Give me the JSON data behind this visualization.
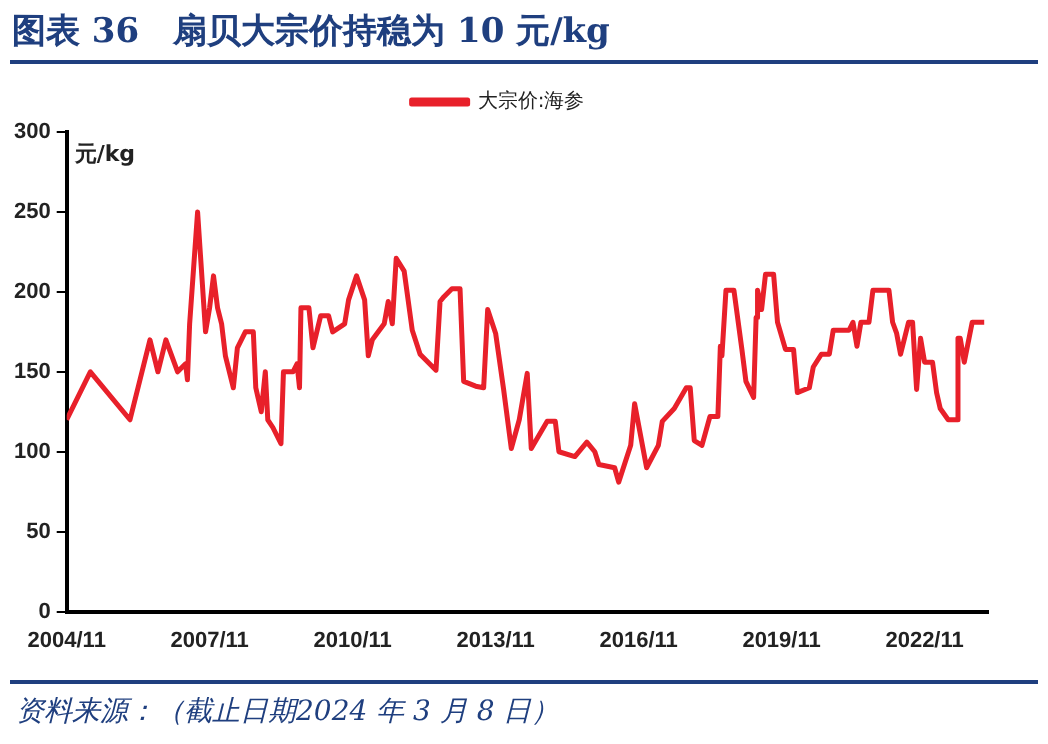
{
  "chart_data": {
    "type": "line",
    "title": "图表 36　扇贝大宗价持稳为 10 元/kg",
    "ylabel": "元/kg",
    "annotations": [
      "资料来源：（截止日期2024 年 3 月 8 日）"
    ],
    "legend": "top",
    "grid": false,
    "marker": "none",
    "xlim": [
      "2004-11",
      "2024-03"
    ],
    "xticks": [
      {
        "value": "2004-11",
        "label": "2004/11"
      },
      {
        "value": "2007-11",
        "label": "2007/11"
      },
      {
        "value": "2010-11",
        "label": "2010/11"
      },
      {
        "value": "2013-11",
        "label": "2013/11"
      },
      {
        "value": "2016-11",
        "label": "2016/11"
      },
      {
        "value": "2019-11",
        "label": "2019/11"
      },
      {
        "value": "2022-11",
        "label": "2022/11"
      }
    ],
    "ylim": [
      0,
      300
    ],
    "yticks": [
      0,
      50,
      100,
      150,
      200,
      250,
      300
    ],
    "x": [
      "2004-11",
      "2005-05",
      "2006-03",
      "2006-08",
      "2006-10",
      "2006-12",
      "2007-03",
      "2007-05",
      "2007-05-15",
      "2007-06",
      "2007-08",
      "2007-10",
      "2007-11",
      "2007-12",
      "2008-01",
      "2008-02",
      "2008-03",
      "2008-05",
      "2008-06",
      "2008-08",
      "2008-10",
      "2008-10-20",
      "2008-12",
      "2009-01",
      "2009-01-20",
      "2009-03",
      "2009-05",
      "2009-05-20",
      "2009-08",
      "2009-09",
      "2009-09-20",
      "2009-10",
      "2009-12",
      "2010-01",
      "2010-03",
      "2010-05",
      "2010-06",
      "2010-09",
      "2010-10",
      "2010-12",
      "2011-02",
      "2011-03",
      "2011-04",
      "2011-07",
      "2011-08",
      "2011-09",
      "2011-10",
      "2011-12",
      "2012-02",
      "2012-04",
      "2012-08",
      "2012-09",
      "2012-10",
      "2012-12",
      "2013-02",
      "2013-03",
      "2013-06",
      "2013-08",
      "2013-09",
      "2013-11",
      "2014-01",
      "2014-03",
      "2014-05",
      "2014-07",
      "2014-08",
      "2014-12",
      "2015-02",
      "2015-03",
      "2015-07",
      "2015-10",
      "2015-12",
      "2016-01",
      "2016-05",
      "2016-06",
      "2016-09",
      "2016-10",
      "2017-01",
      "2017-04",
      "2017-05",
      "2017-08",
      "2017-11",
      "2017-12",
      "2018-01",
      "2018-03",
      "2018-05",
      "2018-07",
      "2018-07-20",
      "2018-08",
      "2018-09",
      "2018-11",
      "2019-01",
      "2019-02",
      "2019-04",
      "2019-04-20",
      "2019-05",
      "2019-06",
      "2019-07",
      "2019-09",
      "2019-10",
      "2019-12",
      "2020-02",
      "2020-03",
      "2020-06",
      "2020-07",
      "2020-09",
      "2020-11",
      "2020-12",
      "2021-04",
      "2021-05",
      "2021-06",
      "2021-07",
      "2021-09",
      "2021-10",
      "2022-02",
      "2022-03",
      "2022-04",
      "2022-05",
      "2022-07",
      "2022-08",
      "2022-09",
      "2022-10",
      "2022-11",
      "2023-01",
      "2023-02",
      "2023-03",
      "2023-05",
      "2023-07",
      "2023-07-15",
      "2023-08",
      "2023-09",
      "2023-11",
      "2024-02"
    ],
    "series": [
      {
        "name": "大宗价:海参",
        "color": "#e8202a",
        "values": [
          120,
          150,
          120,
          170,
          150,
          170,
          150,
          155,
          145,
          180,
          250,
          175,
          190,
          210,
          190,
          180,
          160,
          140,
          165,
          175,
          175,
          140,
          125,
          150,
          120,
          115,
          105,
          150,
          150,
          155,
          140,
          190,
          190,
          165,
          185,
          185,
          175,
          180,
          195,
          210,
          195,
          160,
          170,
          180,
          194,
          180,
          221,
          213,
          176,
          161,
          151,
          194,
          197,
          202,
          202,
          144,
          141,
          140,
          189,
          174,
          139,
          102,
          120,
          149,
          102,
          119,
          119,
          100,
          97,
          106,
          100,
          92,
          90,
          81,
          104,
          130,
          90,
          104,
          119,
          127,
          140,
          140,
          107,
          104,
          122,
          122,
          166,
          160,
          201,
          201,
          164,
          144,
          134,
          184,
          201,
          189,
          211,
          211,
          181,
          164,
          164,
          137,
          140,
          153,
          161,
          161,
          176,
          176,
          181,
          166,
          181,
          181,
          201,
          201,
          181,
          174,
          161,
          181,
          181,
          139,
          171,
          156,
          156,
          137,
          127,
          120,
          120,
          171,
          171,
          156,
          181,
          181
        ]
      }
    ]
  }
}
